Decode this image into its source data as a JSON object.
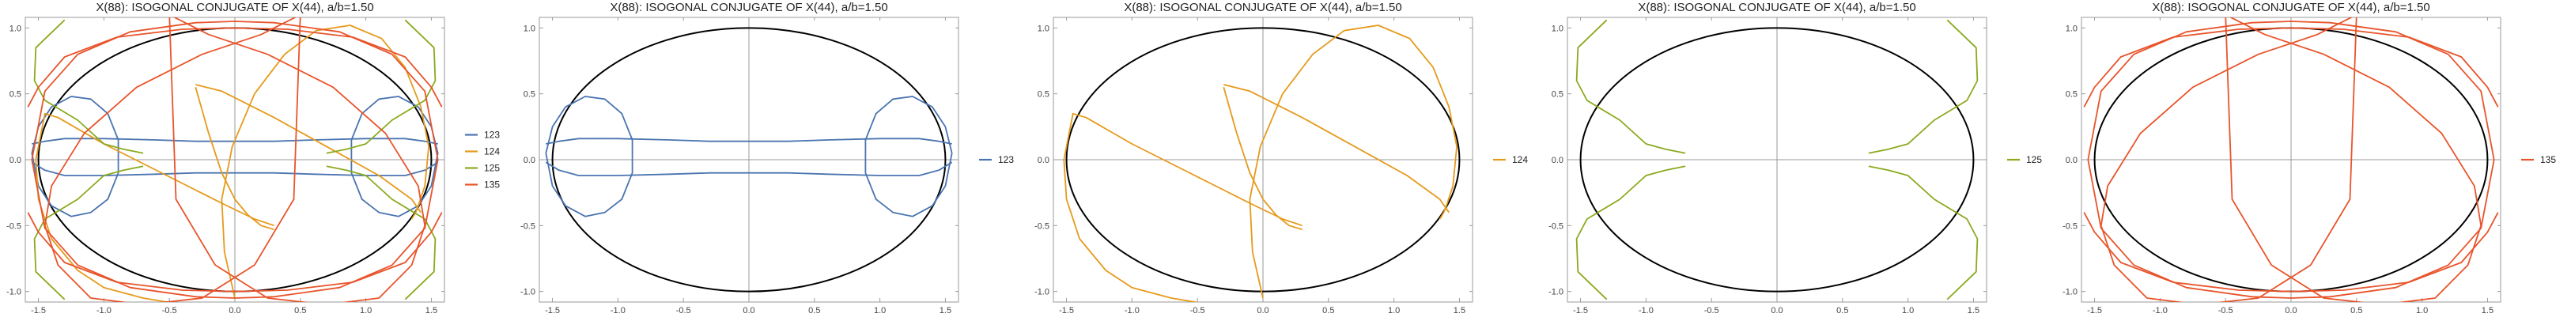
{
  "chart_data": {
    "type": "line",
    "title": "X(88): ISOGONAL CONJUGATE OF X(44), a/b=1.50",
    "xlim": [
      -1.6,
      1.6
    ],
    "ylim": [
      -1.08,
      1.08
    ],
    "xticks": [
      -1.5,
      -1.0,
      -0.5,
      0.0,
      0.5,
      1.0,
      1.5
    ],
    "xtick_labels": [
      "-1.5",
      "-1.0",
      "-0.5",
      "0.0",
      "0.5",
      "1.0",
      "1.5"
    ],
    "yticks": [
      -1.0,
      -0.5,
      0.0,
      0.5,
      1.0
    ],
    "ytick_labels": [
      "-1.0",
      "-0.5",
      "0.0",
      "0.5",
      "1.0"
    ],
    "grid": false,
    "legend_position": "right",
    "reference": {
      "curve": "ellipse",
      "a": 1.5,
      "b": 1.0,
      "color": "#000000"
    },
    "series_styles": [
      {
        "name": "123",
        "color": "#4A74B0"
      },
      {
        "name": "124",
        "color": "#E69A1C"
      },
      {
        "name": "125",
        "color": "#8AAA1E"
      },
      {
        "name": "135",
        "color": "#E8542B"
      }
    ],
    "panels": [
      {
        "title": "X(88): ISOGONAL CONJUGATE OF X(44), a/b=1.50",
        "series": [
          "123",
          "124",
          "125",
          "135"
        ],
        "legend": [
          "123",
          "124",
          "125",
          "135"
        ]
      },
      {
        "title": "X(88): ISOGONAL CONJUGATE OF X(44), a/b=1.50",
        "series": [
          "123"
        ],
        "legend": [
          "123"
        ]
      },
      {
        "title": "X(88): ISOGONAL CONJUGATE OF X(44), a/b=1.50",
        "series": [
          "124"
        ],
        "legend": [
          "124"
        ]
      },
      {
        "title": "X(88): ISOGONAL CONJUGATE OF X(44), a/b=1.50",
        "series": [
          "125"
        ],
        "legend": [
          "125"
        ]
      },
      {
        "title": "X(88): ISOGONAL CONJUGATE OF X(44), a/b=1.50",
        "series": [
          "135"
        ],
        "legend": [
          "135"
        ]
      }
    ],
    "series": [
      {
        "name": "123",
        "color": "#4A74B0",
        "paths": [
          {
            "x": [
              -1.55,
              -1.45,
              -1.3,
              -1.0,
              -0.6,
              -0.3,
              0.0,
              0.3,
              0.6,
              1.0,
              1.3,
              1.45,
              1.55
            ],
            "y": [
              0.12,
              0.14,
              0.16,
              0.16,
              0.15,
              0.14,
              0.14,
              0.14,
              0.15,
              0.16,
              0.16,
              0.14,
              0.12
            ]
          },
          {
            "x": [
              -1.55,
              -1.45,
              -1.3,
              -1.0,
              -0.6,
              -0.3,
              0.0,
              0.3,
              0.6,
              1.0,
              1.3,
              1.45,
              1.55
            ],
            "y": [
              -0.02,
              -0.08,
              -0.12,
              -0.12,
              -0.11,
              -0.1,
              -0.1,
              -0.1,
              -0.11,
              -0.12,
              -0.12,
              -0.08,
              -0.02
            ]
          },
          {
            "x": [
              -1.55,
              -1.5,
              -1.4,
              -1.25,
              -1.1,
              -0.97,
              -0.89,
              -0.89,
              -0.97,
              -1.1,
              -1.25,
              -1.4,
              -1.5,
              -1.55
            ],
            "y": [
              0.05,
              0.25,
              0.4,
              0.48,
              0.46,
              0.35,
              0.15,
              -0.1,
              -0.3,
              -0.4,
              -0.43,
              -0.35,
              -0.2,
              0.05
            ]
          },
          {
            "x": [
              1.55,
              1.5,
              1.4,
              1.25,
              1.1,
              0.97,
              0.89,
              0.89,
              0.97,
              1.1,
              1.25,
              1.4,
              1.5,
              1.55
            ],
            "y": [
              0.05,
              0.25,
              0.4,
              0.48,
              0.46,
              0.35,
              0.15,
              -0.1,
              -0.3,
              -0.4,
              -0.43,
              -0.35,
              -0.2,
              0.05
            ]
          }
        ]
      },
      {
        "name": "124",
        "color": "#E69A1C",
        "paths": [
          {
            "x": [
              -0.3,
              -0.1,
              0.3,
              0.7,
              1.1,
              1.35,
              1.42
            ],
            "y": [
              0.57,
              0.52,
              0.32,
              0.1,
              -0.12,
              -0.3,
              -0.4
            ]
          },
          {
            "x": [
              -0.3,
              -0.2,
              -0.1,
              0.0,
              0.1,
              0.2,
              0.3
            ],
            "y": [
              0.55,
              0.2,
              -0.1,
              -0.3,
              -0.42,
              -0.5,
              -0.53
            ]
          },
          {
            "x": [
              -1.35,
              -1.0,
              -0.7,
              -0.4,
              -0.1,
              0.15,
              0.3
            ],
            "y": [
              0.32,
              0.12,
              -0.03,
              -0.18,
              -0.33,
              -0.45,
              -0.5
            ]
          },
          {
            "x": [
              -1.35,
              -1.45,
              -1.52,
              -1.5,
              -1.4,
              -1.2,
              -1.0,
              -0.7,
              -0.4,
              -0.2
            ],
            "y": [
              0.32,
              0.35,
              0.0,
              -0.3,
              -0.6,
              -0.84,
              -0.97,
              -1.05,
              -1.1,
              -1.12
            ]
          },
          {
            "x": [
              0.0,
              -0.08,
              -0.1,
              -0.02,
              0.15,
              0.38,
              0.62,
              0.88,
              1.12,
              1.3,
              1.42,
              1.48,
              1.45,
              1.4,
              1.38,
              1.35
            ],
            "y": [
              -1.05,
              -0.7,
              -0.3,
              0.1,
              0.5,
              0.8,
              0.98,
              1.02,
              0.92,
              0.7,
              0.4,
              0.1,
              -0.2,
              -0.35,
              -0.4,
              -0.45
            ]
          }
        ]
      },
      {
        "name": "125",
        "color": "#8AAA1E",
        "paths": [
          {
            "x": [
              -1.3,
              -1.52,
              -1.53,
              -1.45,
              -1.2,
              -1.0,
              -0.85,
              -0.7
            ],
            "y": [
              1.06,
              0.85,
              0.6,
              0.45,
              0.3,
              0.12,
              0.08,
              0.05
            ]
          },
          {
            "x": [
              1.3,
              1.52,
              1.53,
              1.45,
              1.2,
              1.0,
              0.85,
              0.7
            ],
            "y": [
              1.06,
              0.85,
              0.6,
              0.45,
              0.3,
              0.12,
              0.08,
              0.05
            ]
          },
          {
            "x": [
              -1.3,
              -1.52,
              -1.53,
              -1.45,
              -1.2,
              -1.0,
              -0.85,
              -0.7
            ],
            "y": [
              -1.06,
              -0.85,
              -0.6,
              -0.45,
              -0.3,
              -0.12,
              -0.08,
              -0.05
            ]
          },
          {
            "x": [
              1.3,
              1.52,
              1.53,
              1.45,
              1.2,
              1.0,
              0.85,
              0.7
            ],
            "y": [
              -1.06,
              -0.85,
              -0.6,
              -0.45,
              -0.3,
              -0.12,
              -0.08,
              -0.05
            ]
          }
        ]
      },
      {
        "name": "135",
        "color": "#E8542B",
        "paths": [
          {
            "x": [
              -1.55,
              -1.45,
              -1.2,
              -0.8,
              -0.3,
              0.0,
              0.3,
              0.8,
              1.2,
              1.45,
              1.55
            ],
            "y": [
              0.0,
              0.52,
              0.8,
              0.97,
              1.04,
              1.05,
              1.04,
              0.97,
              0.8,
              0.52,
              0.0
            ]
          },
          {
            "x": [
              -1.55,
              -1.45,
              -1.2,
              -0.8,
              -0.3,
              0.0,
              0.3,
              0.8,
              1.2,
              1.45,
              1.55
            ],
            "y": [
              0.0,
              -0.52,
              -0.8,
              -0.97,
              -1.04,
              -1.05,
              -1.04,
              -0.97,
              -0.8,
              -0.52,
              0.0
            ]
          },
          {
            "x": [
              0.5,
              0.2,
              -0.25,
              -0.75,
              -1.15,
              -1.4,
              -1.45,
              -1.35,
              -1.1,
              -0.7,
              -0.25,
              0.15,
              0.45,
              0.5
            ],
            "y": [
              1.1,
              0.95,
              0.8,
              0.55,
              0.2,
              -0.2,
              -0.5,
              -0.8,
              -1.05,
              -1.1,
              -1.05,
              -0.8,
              -0.3,
              1.1
            ]
          },
          {
            "x": [
              -0.5,
              -0.2,
              0.25,
              0.75,
              1.15,
              1.4,
              1.45,
              1.35,
              1.1,
              0.7,
              0.25,
              -0.15,
              -0.45,
              -0.5
            ],
            "y": [
              1.1,
              0.95,
              0.8,
              0.55,
              0.2,
              -0.2,
              -0.5,
              -0.8,
              -1.05,
              -1.1,
              -1.05,
              -0.8,
              -0.3,
              1.1
            ]
          },
          {
            "x": [
              -1.58,
              -1.5,
              -1.3,
              -0.9,
              -0.4,
              0.0,
              0.4,
              0.9,
              1.3,
              1.5,
              1.58
            ],
            "y": [
              0.4,
              0.55,
              0.78,
              0.93,
              0.99,
              1.0,
              0.99,
              0.93,
              0.78,
              0.55,
              0.4
            ]
          },
          {
            "x": [
              -1.58,
              -1.5,
              -1.3,
              -0.9,
              -0.4,
              0.0,
              0.4,
              0.9,
              1.3,
              1.5,
              1.58
            ],
            "y": [
              -0.4,
              -0.55,
              -0.78,
              -0.93,
              -0.99,
              -1.0,
              -0.99,
              -0.93,
              -0.78,
              -0.55,
              -0.4
            ]
          }
        ]
      }
    ]
  }
}
